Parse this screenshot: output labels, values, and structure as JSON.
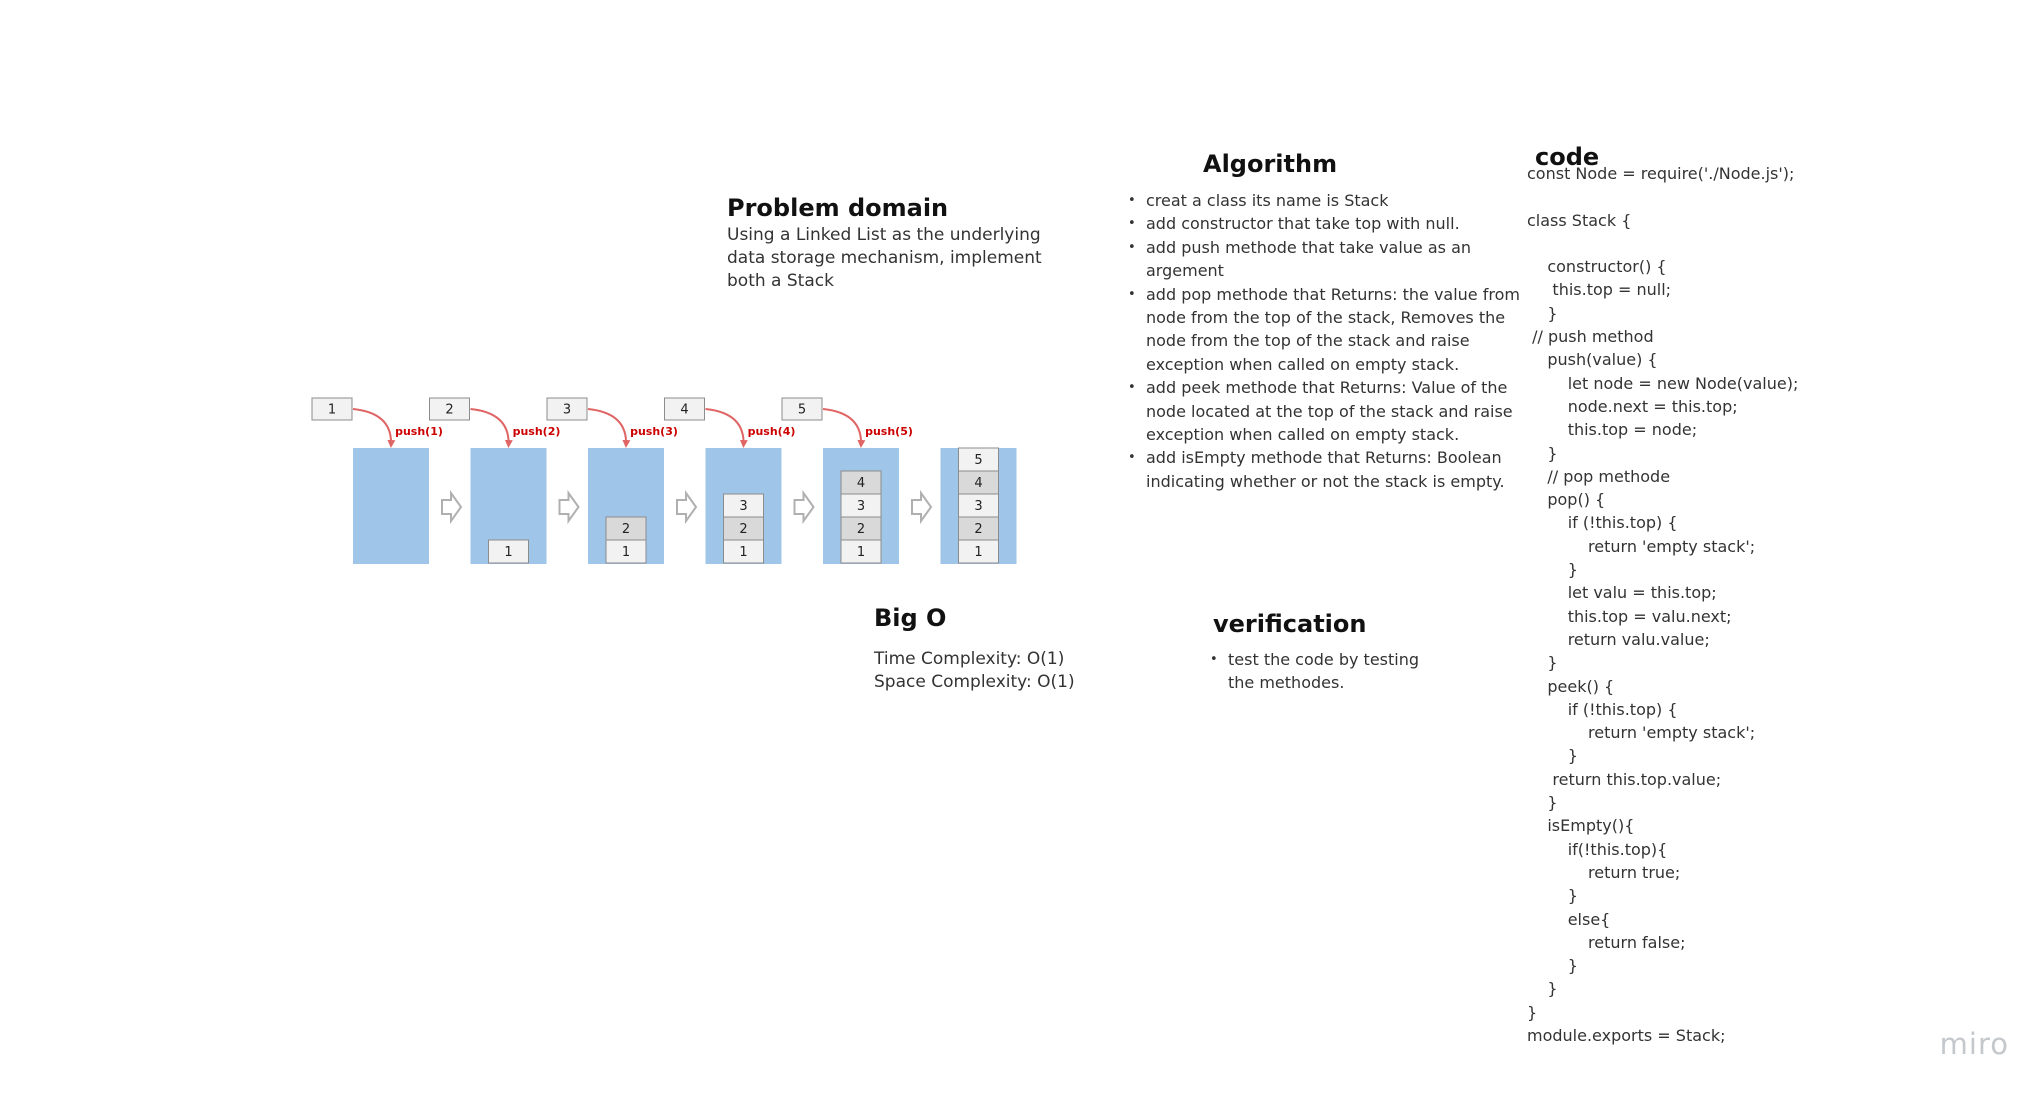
{
  "problem_domain": {
    "title": "Problem domain",
    "lines": [
      "Using a Linked List as the underlying",
      "data storage mechanism, implement",
      "both a Stack"
    ]
  },
  "algorithm": {
    "title": "Algorithm",
    "items": [
      [
        "creat a class its name is Stack"
      ],
      [
        "add constructor that take top with null."
      ],
      [
        "add push methode that take value as an",
        "argement"
      ],
      [
        "add pop methode that Returns: the value from",
        "node from the top of the stack, Removes the",
        "node from the top of the stack and raise",
        "exception when called on empty stack."
      ],
      [
        "add peek methode that Returns: Value of the",
        "node located at the top of the stack and raise",
        "exception when called on empty stack."
      ],
      [
        "add isEmpty methode that  Returns: Boolean",
        "indicating whether or not the stack is empty."
      ]
    ]
  },
  "big_o": {
    "title": "Big O",
    "time": "Time Complexity: O(1)",
    "space": "Space Complexity: O(1)"
  },
  "verification": {
    "title": "verification",
    "items": [
      [
        "test the code by testing",
        "the methodes."
      ]
    ]
  },
  "code": {
    "title": "code",
    "text": "const Node = require('./Node.js');\n\nclass Stack {\n\n    constructor() {\n     this.top = null;\n    }\n // push method\n    push(value) {\n        let node = new Node(value);\n        node.next = this.top;\n        this.top = node;\n    }\n    // pop methode\n    pop() {\n        if (!this.top) {\n            return 'empty stack';\n        }\n        let valu = this.top;\n        this.top = valu.next;\n        return valu.value;\n    }\n    peek() {\n        if (!this.top) {\n            return 'empty stack';\n        }\n     return this.top.value;\n    }\n    isEmpty(){\n        if(!this.top){\n            return true;\n        }\n        else{\n            return false;\n        }\n    }\n}\nmodule.exports = Stack;"
  },
  "stack_diagram": {
    "steps": [
      {
        "push_value": "1",
        "push_label": "push(1)",
        "contents": []
      },
      {
        "push_value": "2",
        "push_label": "push(2)",
        "contents": [
          "1"
        ]
      },
      {
        "push_value": "3",
        "push_label": "push(3)",
        "contents": [
          "1",
          "2"
        ]
      },
      {
        "push_value": "4",
        "push_label": "push(4)",
        "contents": [
          "1",
          "2",
          "3"
        ]
      },
      {
        "push_value": "5",
        "push_label": "push(5)",
        "contents": [
          "1",
          "2",
          "3",
          "4"
        ]
      }
    ],
    "final_contents": [
      "1",
      "2",
      "3",
      "4",
      "5"
    ],
    "colors": {
      "container": "#9fc5e8",
      "cell": "#f2f2f2",
      "cell_alt": "#d9d9d9",
      "cell_border": "#8c8c8c",
      "arrow": "#e06666",
      "push_label": "#cc0000",
      "flow_arrow": "#b0b0b0"
    }
  },
  "watermark": "miro"
}
